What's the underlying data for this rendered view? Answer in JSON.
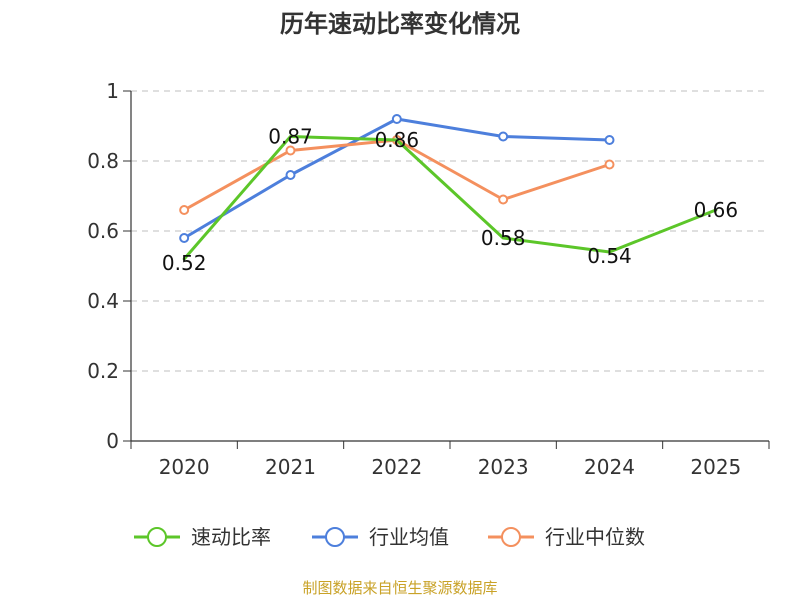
{
  "chart_data": {
    "type": "line",
    "title": "历年速动比率变化情况",
    "categories": [
      "2020",
      "2021",
      "2022",
      "2023",
      "2024",
      "2025"
    ],
    "ylim": [
      0,
      1
    ],
    "yticks": [
      0,
      0.2,
      0.4,
      0.6,
      0.8,
      1
    ],
    "ytick_labels": [
      "0",
      "0.2",
      "0.4",
      "0.6",
      "0.8",
      "1"
    ],
    "grid": true,
    "legend_position": "bottom",
    "series": [
      {
        "name": "速动比率",
        "color": "#5cc629",
        "values": [
          0.52,
          0.87,
          0.86,
          0.58,
          0.54,
          0.66
        ],
        "data_labels": [
          "0.52",
          "0.87",
          "0.86",
          "0.58",
          "0.54",
          "0.66"
        ]
      },
      {
        "name": "行业均值",
        "color": "#4d7fdc",
        "values": [
          0.58,
          0.76,
          0.92,
          0.87,
          0.86,
          null
        ]
      },
      {
        "name": "行业中位数",
        "color": "#f4905e",
        "values": [
          0.66,
          0.83,
          0.86,
          0.69,
          0.79,
          null
        ]
      }
    ],
    "source": "制图数据来自恒生聚源数据库"
  }
}
